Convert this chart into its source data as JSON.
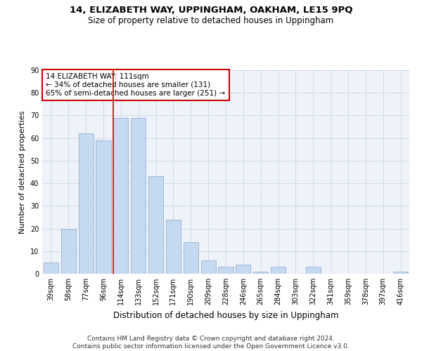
{
  "title": "14, ELIZABETH WAY, UPPINGHAM, OAKHAM, LE15 9PQ",
  "subtitle": "Size of property relative to detached houses in Uppingham",
  "xlabel": "Distribution of detached houses by size in Uppingham",
  "ylabel": "Number of detached properties",
  "categories": [
    "39sqm",
    "58sqm",
    "77sqm",
    "96sqm",
    "114sqm",
    "133sqm",
    "152sqm",
    "171sqm",
    "190sqm",
    "209sqm",
    "228sqm",
    "246sqm",
    "265sqm",
    "284sqm",
    "303sqm",
    "322sqm",
    "341sqm",
    "359sqm",
    "378sqm",
    "397sqm",
    "416sqm"
  ],
  "values": [
    5,
    20,
    62,
    59,
    69,
    69,
    43,
    24,
    14,
    6,
    3,
    4,
    1,
    3,
    0,
    3,
    0,
    0,
    0,
    0,
    1
  ],
  "bar_color": "#c5d9f0",
  "bar_edge_color": "#a0b8d8",
  "vline_x_index": 4,
  "vline_color": "#cc0000",
  "annotation_text": "14 ELIZABETH WAY: 111sqm\n← 34% of detached houses are smaller (131)\n65% of semi-detached houses are larger (251) →",
  "annotation_box_color": "#ffffff",
  "annotation_box_edge_color": "#cc0000",
  "ylim": [
    0,
    90
  ],
  "yticks": [
    0,
    10,
    20,
    30,
    40,
    50,
    60,
    70,
    80,
    90
  ],
  "footer_text": "Contains HM Land Registry data © Crown copyright and database right 2024.\nContains public sector information licensed under the Open Government Licence v3.0.",
  "background_color": "#ffffff",
  "grid_color": "#d0d8e8",
  "title_fontsize": 9.5,
  "subtitle_fontsize": 8.5,
  "axis_label_fontsize": 8,
  "tick_fontsize": 7,
  "annotation_fontsize": 7.5,
  "footer_fontsize": 6.5
}
